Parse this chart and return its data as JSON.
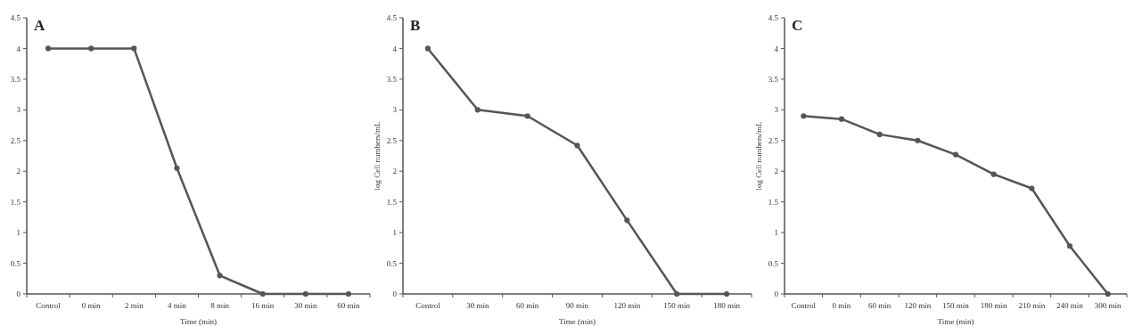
{
  "chart_data": [
    {
      "type": "line",
      "title": "A",
      "xlabel": "Time (min)",
      "categories": [
        "Control",
        "0 min",
        "2 min",
        "4 min",
        "8 min",
        "16 min",
        "30 min",
        "60 min"
      ],
      "series": [
        {
          "color": "#555555",
          "values": [
            4,
            4,
            4,
            2.05,
            0.3,
            0,
            0,
            0
          ]
        }
      ],
      "ylim": [
        0,
        4.5
      ],
      "yticks": [
        0,
        0.5,
        1,
        1.5,
        2,
        2.5,
        3,
        3.5,
        4,
        4.5
      ],
      "grid": false,
      "marker": "circle",
      "line_style": "solid"
    },
    {
      "type": "line",
      "title": "B",
      "xlabel": "Time (min)",
      "ylabel": "log Cell numbers/mL",
      "categories": [
        "Control",
        "30 min",
        "60 min",
        "90 min",
        "120 min",
        "150 min",
        "180 min"
      ],
      "series": [
        {
          "color": "#555555",
          "values": [
            4,
            3,
            2.9,
            2.42,
            1.2,
            0,
            0
          ]
        }
      ],
      "ylim": [
        0,
        4.5
      ],
      "yticks": [
        0,
        0.5,
        1,
        1.5,
        2,
        2.5,
        3,
        3.5,
        4,
        4.5
      ],
      "grid": false,
      "marker": "circle",
      "line_style": "solid"
    },
    {
      "type": "line",
      "title": "C",
      "xlabel": "Time (min)",
      "ylabel": "log Cell numbers/mL",
      "categories": [
        "Control",
        "0 min",
        "60 min",
        "120 min",
        "150 min",
        "180 min",
        "210 min",
        "240 min",
        "300 min"
      ],
      "series": [
        {
          "color": "#555555",
          "values": [
            2.9,
            2.85,
            2.6,
            2.5,
            2.27,
            1.95,
            1.72,
            0.78,
            0
          ]
        }
      ],
      "ylim": [
        0,
        4.5
      ],
      "yticks": [
        0,
        0.5,
        1,
        1.5,
        2,
        2.5,
        3,
        3.5,
        4,
        4.5
      ],
      "grid": false,
      "marker": "circle",
      "line_style": "solid"
    }
  ]
}
